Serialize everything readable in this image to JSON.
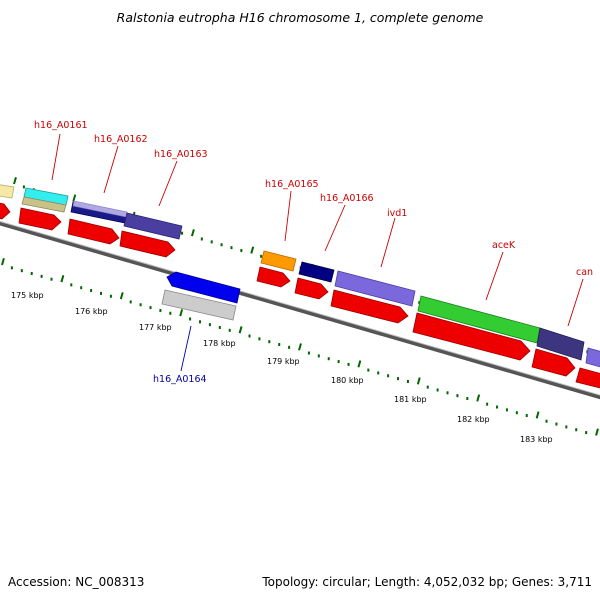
{
  "title": "Ralstonia eutropha H16 chromosome 1, complete genome",
  "footer": {
    "accession": "Accession: NC_008313",
    "summary": "Topology: circular; Length: 4,052,032 bp; Genes: 3,711"
  },
  "colors": {
    "label_red": "#cc0000",
    "label_blue": "#0000aa",
    "tick_green": "#006600",
    "backbone": "#888888"
  },
  "tick_labels": [
    "175 kbp",
    "176 kbp",
    "177 kbp",
    "178 kbp",
    "179 kbp",
    "180 kbp",
    "181 kbp",
    "182 kbp",
    "183 kbp"
  ],
  "gene_labels": [
    {
      "text": "h16_A0161",
      "strand": "forward"
    },
    {
      "text": "h16_A0162",
      "strand": "forward"
    },
    {
      "text": "h16_A0163",
      "strand": "forward"
    },
    {
      "text": "h16_A0165",
      "strand": "forward"
    },
    {
      "text": "h16_A0166",
      "strand": "forward"
    },
    {
      "text": "ivd1",
      "strand": "forward"
    },
    {
      "text": "aceK",
      "strand": "forward"
    },
    {
      "text": "can",
      "strand": "forward"
    },
    {
      "text": "h16_A0164",
      "strand": "reverse"
    }
  ]
}
